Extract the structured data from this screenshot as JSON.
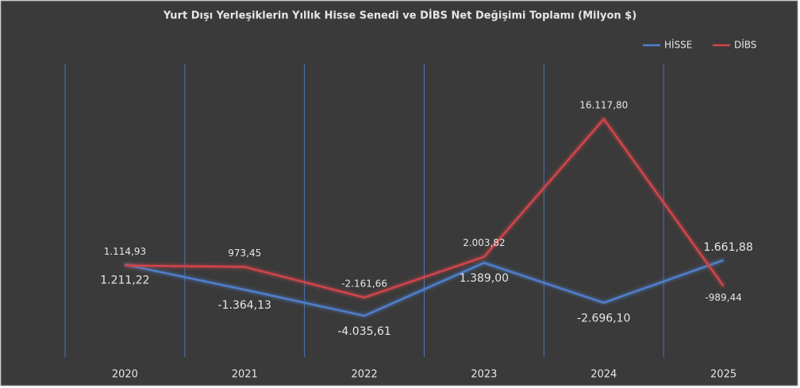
{
  "chart_data": {
    "type": "line",
    "title": "Yurt Dışı Yerleşiklerin Yıllık Hisse Senedi ve DİBS Net Değişimi Toplamı (Milyon $)",
    "categories": [
      "2020",
      "2021",
      "2022",
      "2023",
      "2024",
      "2025"
    ],
    "series": [
      {
        "name": "HİSSE",
        "color": "#4f7fcc",
        "values": [
          1211.22,
          -1364.13,
          -4035.61,
          1389.0,
          -2696.1,
          1661.88
        ],
        "value_labels": [
          "1.211,22",
          "-1.364,13",
          "-4.035,61",
          "1.389,00",
          "-2.696,10",
          "1.661,88"
        ]
      },
      {
        "name": "DİBS",
        "color": "#d0454a",
        "values": [
          1114.93,
          973.45,
          -2161.66,
          2003.82,
          16117.8,
          -989.44
        ],
        "value_labels": [
          "1.114,93",
          "973,45",
          "-2.161,66",
          "2.003,82",
          "16.117,80",
          "-989,44"
        ]
      }
    ],
    "legend": "top-right"
  }
}
